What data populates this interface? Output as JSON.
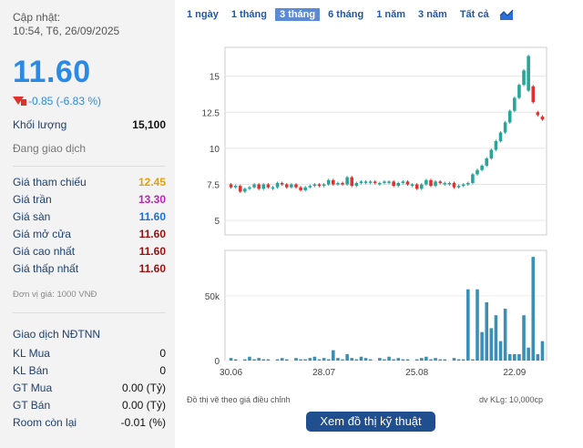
{
  "left": {
    "update_label": "Cập nhật:",
    "update_time": "10:54, T6, 26/09/2025",
    "price": "11.60",
    "change": "-0.85 (-6.83 %)",
    "volume_label": "Khối lượng",
    "volume_value": "15,100",
    "status": "Đang giao dịch",
    "prices": [
      {
        "label": "Giá tham chiếu",
        "value": "12.45",
        "color": "#e8a000"
      },
      {
        "label": "Giá trần",
        "value": "13.30",
        "color": "#c21fbf"
      },
      {
        "label": "Giá sàn",
        "value": "11.60",
        "color": "#1f6fd6"
      },
      {
        "label": "Giá mở cửa",
        "value": "11.60",
        "color": "#9a1010"
      },
      {
        "label": "Giá cao nhất",
        "value": "11.60",
        "color": "#9a1010"
      },
      {
        "label": "Giá thấp nhất",
        "value": "11.60",
        "color": "#9a1010"
      }
    ],
    "unit_note": "Đơn vị giá: 1000 VNĐ",
    "foreign_title": "Giao dịch NĐTNN",
    "foreign": [
      {
        "label": "KL Mua",
        "value": "0"
      },
      {
        "label": "KL Bán",
        "value": "0"
      },
      {
        "label": "GT Mua",
        "value": "0.00 (Tỷ)"
      },
      {
        "label": "GT Bán",
        "value": "0.00 (Tỷ)"
      },
      {
        "label": "Room còn lại",
        "value": "-0.01 (%)"
      }
    ]
  },
  "tabs": [
    "1 ngày",
    "1 tháng",
    "3 tháng",
    "6 tháng",
    "1 năm",
    "3 năm",
    "Tất cả"
  ],
  "active_tab": "3 tháng",
  "chart_icon": "chart-area-icon",
  "price_axis": [
    "15",
    "12.5",
    "10",
    "7.5",
    "5"
  ],
  "volume_axis": [
    "50k",
    "0"
  ],
  "x_axis": [
    "30.06",
    "28.07",
    "25.08",
    "22.09"
  ],
  "footer_left": "Đồ thị vẽ theo giá điều chỉnh",
  "footer_right": "dv KLg: 10,000cp",
  "tech_button": "Xem đồ thị kỹ thuật",
  "colors": {
    "up": "#26a69a",
    "down": "#e0312f",
    "accent": "#2a8ae6",
    "volume": "#3a8fb7"
  },
  "chart_data": {
    "type": "candlestick",
    "ylim": [
      4,
      17
    ],
    "x_ticks": [
      "30.06",
      "28.07",
      "25.08",
      "22.09"
    ],
    "candles": [
      [
        7.5,
        7.3
      ],
      [
        7.3,
        7.4
      ],
      [
        7.4,
        7.0
      ],
      [
        7.0,
        7.2
      ],
      [
        7.2,
        7.3
      ],
      [
        7.3,
        7.5
      ],
      [
        7.5,
        7.2
      ],
      [
        7.2,
        7.5
      ],
      [
        7.5,
        7.3
      ],
      [
        7.3,
        7.3
      ],
      [
        7.3,
        7.6
      ],
      [
        7.6,
        7.5
      ],
      [
        7.5,
        7.3
      ],
      [
        7.3,
        7.5
      ],
      [
        7.5,
        7.3
      ],
      [
        7.3,
        7.1
      ],
      [
        7.1,
        7.3
      ],
      [
        7.3,
        7.4
      ],
      [
        7.4,
        7.5
      ],
      [
        7.5,
        7.4
      ],
      [
        7.4,
        7.5
      ],
      [
        7.5,
        7.8
      ],
      [
        7.8,
        7.5
      ],
      [
        7.5,
        7.6
      ],
      [
        7.6,
        7.5
      ],
      [
        7.5,
        8.0
      ],
      [
        8.0,
        7.4
      ],
      [
        7.4,
        7.6
      ],
      [
        7.6,
        7.7
      ],
      [
        7.7,
        7.7
      ],
      [
        7.7,
        7.7
      ],
      [
        7.7,
        7.6
      ],
      [
        7.6,
        7.6
      ],
      [
        7.6,
        7.7
      ],
      [
        7.7,
        7.7
      ],
      [
        7.7,
        7.4
      ],
      [
        7.4,
        7.6
      ],
      [
        7.6,
        7.7
      ],
      [
        7.7,
        7.5
      ],
      [
        7.5,
        7.5
      ],
      [
        7.5,
        7.2
      ],
      [
        7.2,
        7.5
      ],
      [
        7.5,
        7.8
      ],
      [
        7.8,
        7.4
      ],
      [
        7.4,
        7.7
      ],
      [
        7.7,
        7.6
      ],
      [
        7.6,
        7.6
      ],
      [
        7.6,
        7.6
      ],
      [
        7.6,
        7.3
      ],
      [
        7.3,
        7.4
      ],
      [
        7.4,
        7.5
      ],
      [
        7.5,
        7.6
      ],
      [
        7.6,
        8.2
      ],
      [
        8.2,
        8.5
      ],
      [
        8.5,
        8.8
      ],
      [
        8.8,
        9.3
      ],
      [
        9.3,
        9.9
      ],
      [
        9.9,
        10.5
      ],
      [
        10.5,
        11.1
      ],
      [
        11.1,
        11.8
      ],
      [
        11.8,
        12.6
      ],
      [
        12.6,
        13.5
      ],
      [
        13.5,
        14.4
      ],
      [
        14.4,
        15.4
      ],
      [
        14.0,
        16.4
      ],
      [
        14.3,
        13.2
      ],
      [
        12.5,
        12.3
      ],
      [
        12.2,
        12.0
      ]
    ],
    "volumes_k": [
      2,
      1,
      0,
      1,
      3,
      1,
      2,
      1,
      1,
      0,
      1,
      2,
      1,
      0,
      2,
      1,
      1,
      2,
      3,
      1,
      2,
      1,
      8,
      2,
      1,
      5,
      2,
      1,
      3,
      2,
      1,
      0,
      2,
      1,
      3,
      1,
      2,
      1,
      1,
      0,
      1,
      2,
      3,
      1,
      2,
      1,
      1,
      0,
      2,
      1,
      1,
      55,
      1,
      55,
      22,
      45,
      25,
      35,
      15,
      40,
      5,
      5,
      5,
      35,
      10,
      80,
      5,
      15
    ]
  }
}
